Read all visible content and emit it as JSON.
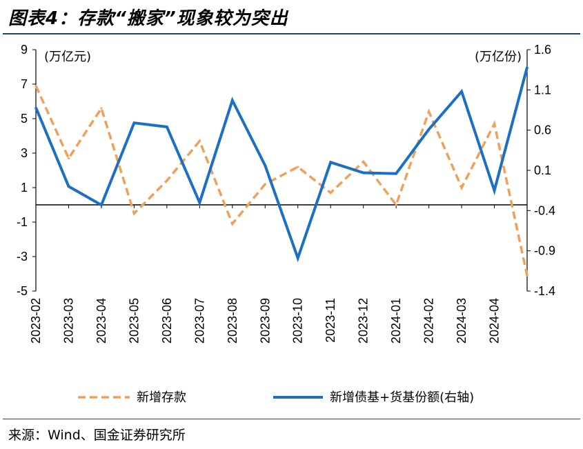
{
  "title": "图表4：存款“搬家”现象较为突出",
  "source": "来源：Wind、国金证券研究所",
  "chart_data": {
    "type": "line",
    "categories": [
      "2023-02",
      "2023-03",
      "2023-04",
      "2023-05",
      "2023-06",
      "2023-07",
      "2023-08",
      "2023-09",
      "2023-10",
      "2023-11",
      "2023-12",
      "2024-01",
      "2024-02",
      "2024-03",
      "2024-04",
      ""
    ],
    "left_axis": {
      "unit": "(万亿元)",
      "ylim": [
        -5,
        9
      ],
      "ticks": [
        "9",
        "7",
        "5",
        "3",
        "1",
        "-1",
        "-3",
        "-5"
      ]
    },
    "right_axis": {
      "unit": "(万亿份)",
      "ylim": [
        -1.4,
        1.6
      ],
      "ticks": [
        "1.6",
        "1.1",
        "0.6",
        "0.1",
        "-0.4",
        "-0.9",
        "-1.4"
      ]
    },
    "series": [
      {
        "name": "新增存款",
        "axis": "left",
        "color": "#F0A05A",
        "dash": true,
        "values": [
          6.9,
          2.7,
          5.6,
          -0.5,
          1.4,
          3.7,
          -1.1,
          1.2,
          2.2,
          0.7,
          2.5,
          0.0,
          5.4,
          1.0,
          4.7,
          -4.1
        ]
      },
      {
        "name": "新增债基+货基份额(右轴)",
        "axis": "right",
        "color": "#1B6FC4",
        "dash": false,
        "values": [
          0.88,
          -0.1,
          -0.33,
          0.69,
          0.64,
          -0.3,
          0.97,
          0.16,
          -0.99,
          0.2,
          0.07,
          0.06,
          0.61,
          1.08,
          -0.15,
          1.38
        ]
      }
    ]
  }
}
